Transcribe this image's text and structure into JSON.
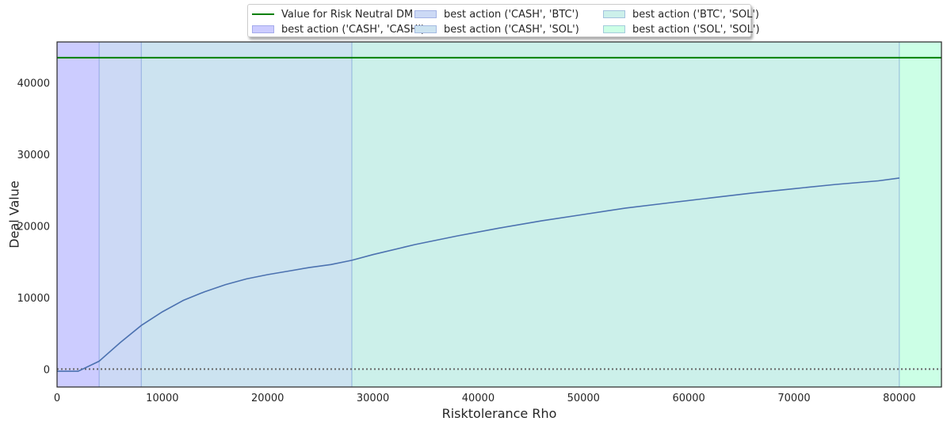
{
  "chart_data": {
    "type": "line",
    "xlabel": "Risktolerance Rho",
    "ylabel": "Deal Value",
    "xlim": [
      0,
      84000
    ],
    "ylim": [
      -2500,
      45700
    ],
    "x_ticks": [
      0,
      10000,
      20000,
      30000,
      40000,
      50000,
      60000,
      70000,
      80000
    ],
    "y_ticks": [
      0,
      10000,
      20000,
      30000,
      40000
    ],
    "grid": false,
    "legend_placement": "top-center, outside",
    "reference_lines": [
      {
        "name": "Value for Risk Neutral DM",
        "y": 43500,
        "color": "#008000",
        "style": "solid"
      },
      {
        "y": 0,
        "color": "#666666",
        "style": "dotted"
      }
    ],
    "regions": [
      {
        "name": "best action ('CASH', 'CASH')",
        "x0": 0,
        "x1": 4000,
        "color": "#ccccff"
      },
      {
        "name": "best action ('CASH', 'BTC')",
        "x0": 4000,
        "x1": 8000,
        "color": "#ccd9f5"
      },
      {
        "name": "best action ('CASH', 'SOL')",
        "x0": 8000,
        "x1": 28000,
        "color": "#cce3f0"
      },
      {
        "name": "best action ('BTC', 'SOL')",
        "x0": 28000,
        "x1": 80000,
        "color": "#ccf0ea"
      },
      {
        "name": "best action ('SOL', 'SOL')",
        "x0": 80000,
        "x1": 84000,
        "color": "#ccffe6"
      }
    ],
    "series": [
      {
        "color": "#4c72b0",
        "x": [
          0,
          2000,
          4000,
          6000,
          8000,
          10000,
          12000,
          14000,
          16000,
          18000,
          20000,
          22000,
          24000,
          26000,
          28000,
          30000,
          34000,
          38000,
          42000,
          46000,
          50000,
          54000,
          58000,
          62000,
          66000,
          70000,
          74000,
          78000,
          80000
        ],
        "y": [
          -300,
          -300,
          1100,
          3700,
          6100,
          8000,
          9600,
          10800,
          11800,
          12600,
          13200,
          13700,
          14200,
          14600,
          15200,
          16000,
          17400,
          18600,
          19700,
          20700,
          21600,
          22500,
          23200,
          23900,
          24600,
          25200,
          25800,
          26300,
          26700
        ]
      }
    ]
  }
}
